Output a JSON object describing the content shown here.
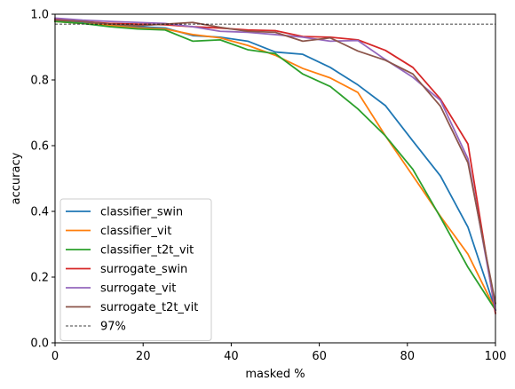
{
  "chart_data": {
    "type": "line",
    "xlabel": "masked %",
    "ylabel": "accuracy",
    "xlim": [
      0,
      100
    ],
    "ylim": [
      0.0,
      1.0
    ],
    "xticks": [
      0,
      20,
      40,
      60,
      80,
      100
    ],
    "yticks": [
      0.0,
      0.2,
      0.4,
      0.6,
      0.8,
      1.0
    ],
    "xtick_labels": [
      "0",
      "20",
      "40",
      "60",
      "80",
      "100"
    ],
    "ytick_labels": [
      "0.0",
      "0.2",
      "0.4",
      "0.6",
      "0.8",
      "1.0"
    ],
    "grid": false,
    "legend_position": "lower-left",
    "x": [
      0,
      6.25,
      12.5,
      18.75,
      25,
      31.25,
      37.5,
      43.75,
      50,
      56.25,
      62.5,
      68.75,
      75,
      81.25,
      87.5,
      93.75,
      100
    ],
    "series": [
      {
        "name": "classifier_swin",
        "color": "#1f77b4",
        "values": [
          0.98,
          0.975,
          0.968,
          0.962,
          0.958,
          0.935,
          0.93,
          0.918,
          0.885,
          0.878,
          0.838,
          0.785,
          0.722,
          0.614,
          0.508,
          0.352,
          0.1
        ]
      },
      {
        "name": "classifier_vit",
        "color": "#ff7f0e",
        "values": [
          0.978,
          0.972,
          0.966,
          0.958,
          0.955,
          0.938,
          0.928,
          0.905,
          0.875,
          0.835,
          0.806,
          0.762,
          0.63,
          0.508,
          0.385,
          0.27,
          0.1
        ]
      },
      {
        "name": "classifier_t2t_vit",
        "color": "#2ca02c",
        "values": [
          0.978,
          0.972,
          0.962,
          0.955,
          0.952,
          0.918,
          0.922,
          0.892,
          0.88,
          0.818,
          0.78,
          0.712,
          0.63,
          0.528,
          0.382,
          0.23,
          0.1
        ]
      },
      {
        "name": "surrogate_swin",
        "color": "#d62728",
        "values": [
          0.985,
          0.978,
          0.972,
          0.97,
          0.968,
          0.962,
          0.958,
          0.952,
          0.95,
          0.932,
          0.93,
          0.922,
          0.89,
          0.838,
          0.742,
          0.605,
          0.09
        ]
      },
      {
        "name": "surrogate_vit",
        "color": "#9467bd",
        "values": [
          0.988,
          0.982,
          0.978,
          0.975,
          0.972,
          0.962,
          0.948,
          0.945,
          0.938,
          0.93,
          0.918,
          0.92,
          0.862,
          0.808,
          0.738,
          0.56,
          0.1
        ]
      },
      {
        "name": "surrogate_t2t_vit",
        "color": "#8c564b",
        "values": [
          0.982,
          0.978,
          0.97,
          0.965,
          0.97,
          0.975,
          0.96,
          0.948,
          0.945,
          0.918,
          0.928,
          0.888,
          0.86,
          0.818,
          0.72,
          0.548,
          0.12
        ]
      }
    ],
    "reference_line": {
      "name": "97%",
      "value": 0.97,
      "color": "#000000",
      "style": "dashed"
    }
  }
}
